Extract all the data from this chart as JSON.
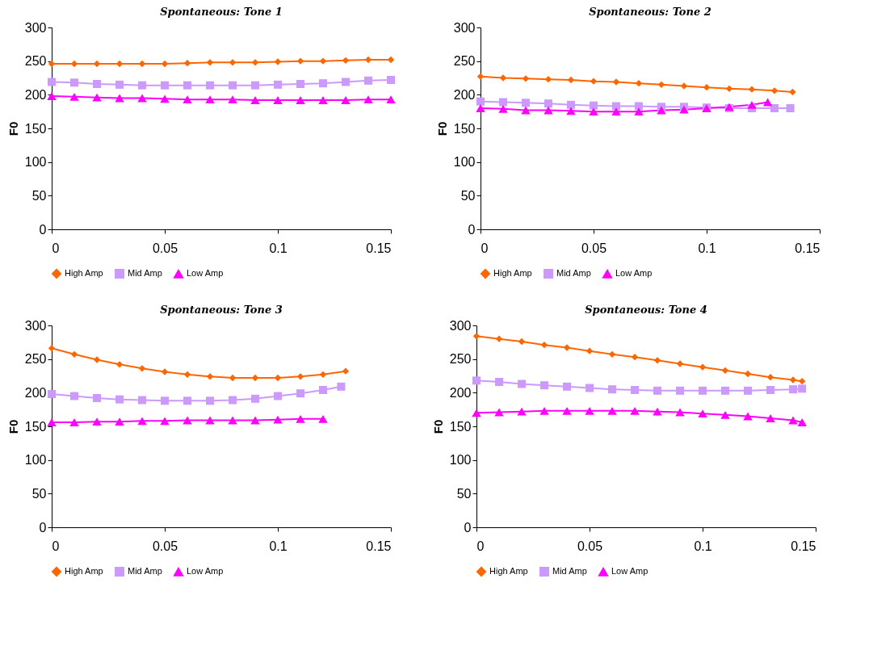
{
  "chart_data": [
    {
      "type": "line",
      "title": "Spontaneous: Tone 1",
      "ylabel": "F0",
      "xlim": [
        0,
        0.15
      ],
      "xticks": [
        0,
        0.05,
        0.1,
        0.15
      ],
      "ylim": [
        0,
        300
      ],
      "yticks": [
        0,
        50,
        100,
        150,
        200,
        250,
        300
      ],
      "legend": "bottom",
      "grid": false,
      "series": [
        {
          "name": "High Amp",
          "color": "#ff6600",
          "marker": "diamond",
          "x": [
            0,
            0.01,
            0.02,
            0.03,
            0.04,
            0.05,
            0.06,
            0.07,
            0.08,
            0.09,
            0.1,
            0.11,
            0.12,
            0.13,
            0.14,
            0.15
          ],
          "values": [
            246,
            246,
            246,
            246,
            246,
            246,
            247,
            248,
            248,
            248,
            249,
            250,
            250,
            251,
            252,
            252
          ]
        },
        {
          "name": "Mid Amp",
          "color": "#cc99ff",
          "marker": "square",
          "x": [
            0,
            0.01,
            0.02,
            0.03,
            0.04,
            0.05,
            0.06,
            0.07,
            0.08,
            0.09,
            0.1,
            0.11,
            0.12,
            0.13,
            0.14,
            0.15
          ],
          "values": [
            219,
            218,
            216,
            215,
            214,
            214,
            214,
            214,
            214,
            214,
            215,
            216,
            217,
            219,
            221,
            222
          ]
        },
        {
          "name": "Low Amp",
          "color": "#ff00ff",
          "marker": "triangle",
          "x": [
            0,
            0.01,
            0.02,
            0.03,
            0.04,
            0.05,
            0.06,
            0.07,
            0.08,
            0.09,
            0.1,
            0.11,
            0.12,
            0.13,
            0.14,
            0.15
          ],
          "values": [
            198,
            197,
            196,
            195,
            195,
            194,
            193,
            193,
            193,
            192,
            192,
            192,
            192,
            192,
            193,
            193
          ]
        }
      ]
    },
    {
      "type": "line",
      "title": "Spontaneous: Tone 2",
      "ylabel": "F0",
      "xlim": [
        0,
        0.15
      ],
      "xticks": [
        0,
        0.05,
        0.1,
        0.15
      ],
      "ylim": [
        0,
        300
      ],
      "yticks": [
        0,
        50,
        100,
        150,
        200,
        250,
        300
      ],
      "legend": "bottom",
      "grid": false,
      "series": [
        {
          "name": "High Amp",
          "color": "#ff6600",
          "marker": "diamond",
          "x": [
            0,
            0.01,
            0.02,
            0.03,
            0.04,
            0.05,
            0.06,
            0.07,
            0.08,
            0.09,
            0.1,
            0.11,
            0.12,
            0.13,
            0.138
          ],
          "values": [
            227,
            225,
            224,
            223,
            222,
            220,
            219,
            217,
            215,
            213,
            211,
            209,
            208,
            206,
            204
          ]
        },
        {
          "name": "Mid Amp",
          "color": "#cc99ff",
          "marker": "square",
          "x": [
            0,
            0.01,
            0.02,
            0.03,
            0.04,
            0.05,
            0.06,
            0.07,
            0.08,
            0.09,
            0.1,
            0.11,
            0.12,
            0.13,
            0.137
          ],
          "values": [
            190,
            189,
            188,
            187,
            185,
            184,
            183,
            183,
            182,
            182,
            181,
            180,
            180,
            180,
            180
          ]
        },
        {
          "name": "Low Amp",
          "color": "#ff00ff",
          "marker": "triangle",
          "x": [
            0,
            0.01,
            0.02,
            0.03,
            0.04,
            0.05,
            0.06,
            0.07,
            0.08,
            0.09,
            0.1,
            0.11,
            0.12,
            0.127
          ],
          "values": [
            180,
            179,
            177,
            177,
            176,
            175,
            175,
            175,
            177,
            178,
            180,
            182,
            185,
            189
          ]
        }
      ]
    },
    {
      "type": "line",
      "title": "Spontaneous: Tone 3",
      "ylabel": "F0",
      "xlim": [
        0,
        0.15
      ],
      "xticks": [
        0,
        0.05,
        0.1,
        0.15
      ],
      "ylim": [
        0,
        300
      ],
      "yticks": [
        0,
        50,
        100,
        150,
        200,
        250,
        300
      ],
      "legend": "bottom",
      "grid": false,
      "series": [
        {
          "name": "High Amp",
          "color": "#ff6600",
          "marker": "diamond",
          "x": [
            0,
            0.01,
            0.02,
            0.03,
            0.04,
            0.05,
            0.06,
            0.07,
            0.08,
            0.09,
            0.1,
            0.11,
            0.12,
            0.13
          ],
          "values": [
            266,
            257,
            249,
            242,
            236,
            231,
            227,
            224,
            222,
            222,
            222,
            224,
            227,
            232
          ]
        },
        {
          "name": "Mid Amp",
          "color": "#cc99ff",
          "marker": "square",
          "x": [
            0,
            0.01,
            0.02,
            0.03,
            0.04,
            0.05,
            0.06,
            0.07,
            0.08,
            0.09,
            0.1,
            0.11,
            0.12,
            0.128
          ],
          "values": [
            198,
            195,
            192,
            190,
            189,
            188,
            188,
            188,
            189,
            191,
            195,
            199,
            204,
            209
          ]
        },
        {
          "name": "Low Amp",
          "color": "#ff00ff",
          "marker": "triangle",
          "x": [
            0,
            0.01,
            0.02,
            0.03,
            0.04,
            0.05,
            0.06,
            0.07,
            0.08,
            0.09,
            0.1,
            0.11,
            0.12
          ],
          "values": [
            156,
            156,
            157,
            157,
            158,
            158,
            159,
            159,
            159,
            159,
            160,
            161,
            161
          ]
        }
      ]
    },
    {
      "type": "line",
      "title": "Spontaneous: Tone 4",
      "ylabel": "F0",
      "xlim": [
        0,
        0.15
      ],
      "xticks": [
        0,
        0.05,
        0.1,
        0.15
      ],
      "ylim": [
        0,
        300
      ],
      "yticks": [
        0,
        50,
        100,
        150,
        200,
        250,
        300
      ],
      "legend": "bottom",
      "grid": false,
      "series": [
        {
          "name": "High Amp",
          "color": "#ff6600",
          "marker": "diamond",
          "x": [
            0,
            0.01,
            0.02,
            0.03,
            0.04,
            0.05,
            0.06,
            0.07,
            0.08,
            0.09,
            0.1,
            0.11,
            0.12,
            0.13,
            0.14,
            0.144
          ],
          "values": [
            284,
            280,
            276,
            271,
            267,
            262,
            257,
            253,
            248,
            243,
            238,
            233,
            228,
            223,
            219,
            217
          ]
        },
        {
          "name": "Mid Amp",
          "color": "#cc99ff",
          "marker": "square",
          "x": [
            0,
            0.01,
            0.02,
            0.03,
            0.04,
            0.05,
            0.06,
            0.07,
            0.08,
            0.09,
            0.1,
            0.11,
            0.12,
            0.13,
            0.14,
            0.144
          ],
          "values": [
            218,
            216,
            213,
            211,
            209,
            207,
            205,
            204,
            203,
            203,
            203,
            203,
            203,
            204,
            205,
            206
          ]
        },
        {
          "name": "Low Amp",
          "color": "#ff00ff",
          "marker": "triangle",
          "x": [
            0,
            0.01,
            0.02,
            0.03,
            0.04,
            0.05,
            0.06,
            0.07,
            0.08,
            0.09,
            0.1,
            0.11,
            0.12,
            0.13,
            0.14,
            0.144
          ],
          "values": [
            170,
            171,
            172,
            173,
            173,
            173,
            173,
            173,
            172,
            171,
            169,
            167,
            165,
            162,
            159,
            156
          ]
        }
      ]
    }
  ]
}
